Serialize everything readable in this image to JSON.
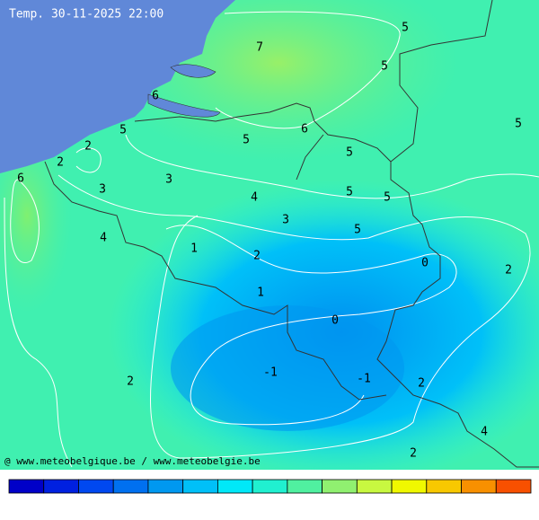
{
  "header": {
    "title": "Temp. 30-11-2025 22:00"
  },
  "contour_labels": [
    7,
    5,
    5,
    6,
    5,
    6,
    5,
    5,
    2,
    5,
    2,
    6,
    3,
    3,
    5,
    4,
    5,
    3,
    5,
    4,
    1,
    2,
    0,
    2,
    1,
    0,
    -1,
    -1,
    2,
    2,
    4,
    2
  ],
  "footer": {
    "credit": "@ www.meteobelgique.be / www.meteobelgie.be"
  },
  "color_scale": {
    "colors": [
      "#0000c8",
      "#0020e0",
      "#0048f0",
      "#0070f0",
      "#0098f0",
      "#00c0f8",
      "#00e8f8",
      "#20f0d0",
      "#50f0a0",
      "#90f070",
      "#c8f840",
      "#f0f800",
      "#f8c800",
      "#f89000",
      "#f85000"
    ]
  }
}
